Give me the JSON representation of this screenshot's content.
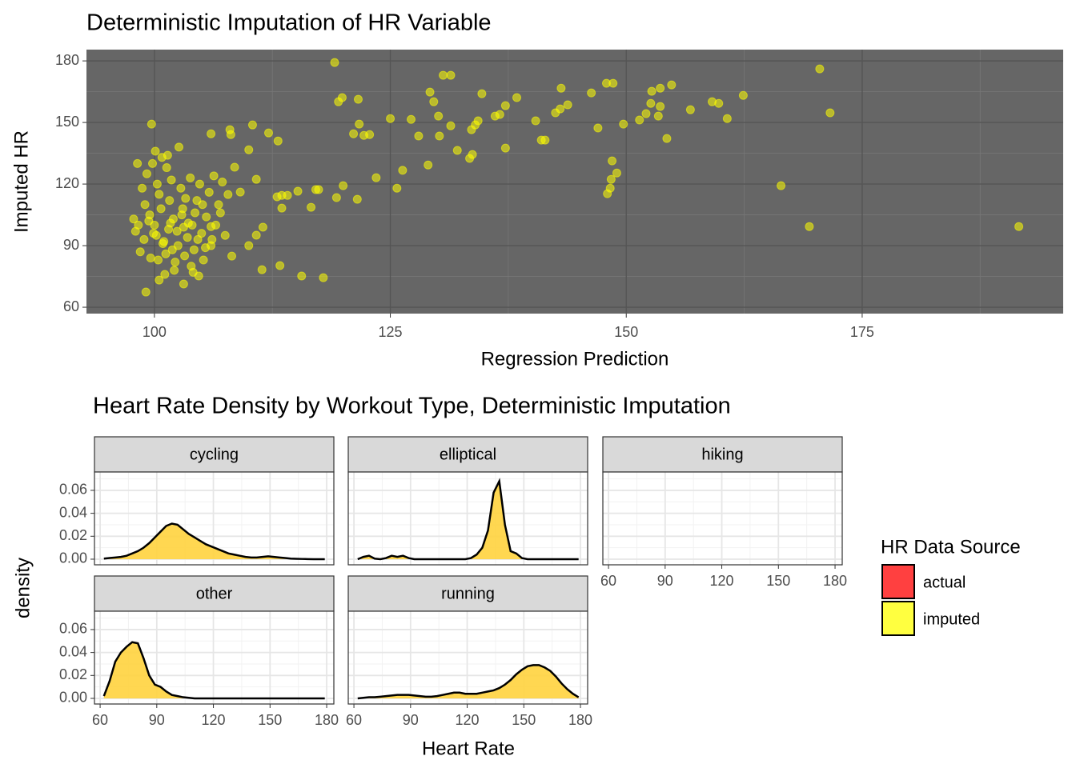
{
  "chart_data": [
    {
      "type": "scatter",
      "title": "Deterministic Imputation of HR Variable",
      "x_label": "Regression Prediction",
      "y_label": "Imputed HR",
      "color": "#ffff00",
      "opacity": 0.55,
      "grid": true,
      "xlim": [
        92.8,
        196.3
      ],
      "ylim": [
        56.9,
        185.5
      ],
      "xticks": [
        100,
        125,
        150,
        175
      ],
      "yticks": [
        60,
        90,
        120,
        150,
        180
      ],
      "x": [
        119.1,
        170.5,
        191.6,
        169.4,
        166.4,
        171.6,
        160.7,
        162.4,
        154.8,
        153.6,
        152.7,
        152.6,
        153.6,
        153.4,
        154.3,
        151.4,
        152.1,
        156.8,
        159.1,
        159.8,
        148.6,
        147.9,
        149.7,
        147.0,
        146.3,
        148.5,
        149.0,
        148.4,
        148.3,
        148.0,
        143.1,
        143.8,
        143.0,
        142.5,
        141.4,
        141.0,
        140.4,
        138.4,
        137.2,
        136.6,
        137.2,
        136.1,
        134.7,
        134.3,
        134.0,
        133.6,
        133.7,
        133.4,
        132.1,
        131.4,
        130.6,
        131.4,
        130.1,
        129.6,
        129.2,
        130.2,
        128.0,
        129.0,
        127.2,
        126.3,
        125.0,
        125.7,
        123.5,
        122.8,
        122.2,
        121.7,
        121.6,
        121.1,
        120.0,
        119.3,
        119.5,
        119.9,
        121.5,
        117.9,
        115.6,
        117.1,
        117.4,
        116.6,
        115.2,
        114.1,
        113.5,
        113.0,
        113.5,
        113.3,
        111.4,
        113.1,
        112.1,
        110.4,
        110.0,
        110.8,
        111.5,
        110.8,
        110.0,
        108.5,
        108.0,
        108.1,
        106.0,
        109.1,
        107.8,
        108.2,
        106.0,
        103.1,
        104.7,
        100.5,
        99.1,
        99.7,
        98,
        98.5,
        99,
        99.5,
        100,
        100.2,
        100.5,
        101,
        101.5,
        102,
        102.5,
        103,
        103.5,
        104,
        104.5,
        105,
        105.5,
        106,
        99.2,
        99.8,
        100.3,
        100.8,
        101.3,
        101.8,
        98.7,
        99.6,
        100.4,
        101.2,
        102.2,
        103.2,
        104.2,
        105.2,
        106.5,
        107,
        107.5,
        102.8,
        103.8,
        104.8,
        105.8,
        106.8,
        98.3,
        98.9,
        99.4,
        100.7,
        101.6,
        102.4,
        103.6,
        104.6,
        105.4,
        102.1,
        103.9,
        101.1,
        104.1,
        106.3,
        107.2,
        102.6,
        101.4,
        100.1,
        98.2,
        97.8,
        103.3,
        104.3,
        101.9,
        100.9,
        99.9,
        106.1,
        105.1,
        103.1,
        102.9,
        101.7
      ],
      "values": [
        179.2,
        176.1,
        99.3,
        99.3,
        119.2,
        154.7,
        151.9,
        163.2,
        168.3,
        166.7,
        165.2,
        159.3,
        157.8,
        153.1,
        142.2,
        151.2,
        154.3,
        156.2,
        160.1,
        159.3,
        169.1,
        169.1,
        149.2,
        147.3,
        164.4,
        131.3,
        125.4,
        122.3,
        118.0,
        115.3,
        166.7,
        158.6,
        156.6,
        154.7,
        141.4,
        141.4,
        150.8,
        162.1,
        158.2,
        153.9,
        137.5,
        153.1,
        164.0,
        150.8,
        148.8,
        146.5,
        134.4,
        132.5,
        136.4,
        173.0,
        173.0,
        148.4,
        153.1,
        160.1,
        164.8,
        143.4,
        143.4,
        129.3,
        151.5,
        126.7,
        151.9,
        118.0,
        123.1,
        144.1,
        143.7,
        149.2,
        161.3,
        144.5,
        119.2,
        113.4,
        160.1,
        162.1,
        112.6,
        74.4,
        75.2,
        117.3,
        117.3,
        108.7,
        116.5,
        114.5,
        114.5,
        113.8,
        108.3,
        80.3,
        78.3,
        141.0,
        144.9,
        148.8,
        136.7,
        122.3,
        99.0,
        95.1,
        90.0,
        128.2,
        146.5,
        144.1,
        144.5,
        116.1,
        114.9,
        84.9,
        99.3,
        71.3,
        75.2,
        73.2,
        67.4,
        149.2,
        97,
        87,
        110,
        105,
        100,
        95,
        115,
        92,
        98,
        103,
        90,
        108,
        94,
        100,
        112,
        96,
        104,
        90,
        125,
        130,
        120,
        133,
        128,
        122,
        118,
        84,
        83,
        86,
        82,
        85,
        88,
        83,
        100,
        106,
        95,
        118,
        123,
        120,
        116,
        110,
        100,
        93,
        102,
        108,
        112,
        97,
        101,
        93,
        89,
        78,
        80,
        76,
        77,
        124,
        121,
        138,
        134,
        136,
        130,
        103,
        113,
        106,
        88,
        91,
        96,
        93,
        110,
        99,
        105,
        101
      ]
    },
    {
      "type": "density",
      "title": "Heart Rate Density by Workout Type, Deterministic Imputation",
      "x_label": "Heart Rate",
      "y_label": "density",
      "legend_title": "HR Data Source",
      "opacity": 0.7,
      "grid": true,
      "series": [
        {
          "name": "actual",
          "color": "#ff4040"
        },
        {
          "name": "imputed",
          "color": "#ffff40"
        }
      ],
      "xlim": [
        57.0,
        183.8
      ],
      "ylim": [
        -0.0049,
        0.076
      ],
      "xticks": [
        60,
        90,
        120,
        150,
        180
      ],
      "yticks": [
        {
          "value": 0,
          "label": "0.00"
        },
        {
          "value": 0.02,
          "label": "0.02"
        },
        {
          "value": 0.04,
          "label": "0.04"
        },
        {
          "value": 0.06,
          "label": "0.06"
        }
      ],
      "x": [
        62,
        65,
        68,
        71,
        74,
        77,
        80,
        83,
        86,
        89,
        92,
        95,
        98,
        101,
        104,
        107,
        110,
        113,
        116,
        119,
        122,
        125,
        128,
        131,
        134,
        137,
        140,
        143,
        146,
        149,
        152,
        155,
        158,
        161,
        164,
        167,
        170,
        173,
        176,
        179
      ],
      "facets": [
        {
          "name": "cycling",
          "values": [
            0.0005,
            0.001,
            0.0015,
            0.002,
            0.003,
            0.005,
            0.007,
            0.01,
            0.014,
            0.019,
            0.024,
            0.029,
            0.031,
            0.03,
            0.026,
            0.022,
            0.019,
            0.016,
            0.013,
            0.011,
            0.009,
            0.007,
            0.005,
            0.004,
            0.003,
            0.002,
            0.0015,
            0.0015,
            0.002,
            0.0025,
            0.002,
            0.0015,
            0.001,
            0.0005,
            0.0003,
            0.0002,
            0.0001,
            0,
            0,
            0
          ]
        },
        {
          "name": "elliptical",
          "values": [
            0,
            0.002,
            0.003,
            0.0005,
            0,
            0.001,
            0.003,
            0.002,
            0.003,
            0.001,
            0,
            0,
            0,
            0,
            0,
            0,
            0,
            0,
            0,
            0,
            0.001,
            0.004,
            0.01,
            0.025,
            0.058,
            0.068,
            0.03,
            0.007,
            0.005,
            0.001,
            0,
            0,
            0,
            0,
            0,
            0,
            0,
            0,
            0,
            0
          ]
        },
        {
          "name": "hiking"
        },
        {
          "name": "other",
          "values": [
            0.002,
            0.015,
            0.032,
            0.04,
            0.045,
            0.049,
            0.048,
            0.035,
            0.02,
            0.012,
            0.01,
            0.006,
            0.003,
            0.002,
            0.001,
            0.0005,
            0,
            0,
            0,
            0,
            0,
            0,
            0,
            0,
            0,
            0,
            0,
            0,
            0,
            0,
            0,
            0,
            0,
            0,
            0,
            0,
            0,
            0,
            0,
            0
          ]
        },
        {
          "name": "running",
          "values": [
            0,
            0.0005,
            0.001,
            0.001,
            0.0015,
            0.002,
            0.0025,
            0.003,
            0.003,
            0.003,
            0.0025,
            0.002,
            0.0015,
            0.0015,
            0.002,
            0.003,
            0.004,
            0.005,
            0.005,
            0.004,
            0.004,
            0.004,
            0.005,
            0.006,
            0.007,
            0.009,
            0.012,
            0.016,
            0.021,
            0.025,
            0.028,
            0.029,
            0.029,
            0.027,
            0.024,
            0.019,
            0.013,
            0.008,
            0.004,
            0.001
          ]
        }
      ]
    }
  ]
}
